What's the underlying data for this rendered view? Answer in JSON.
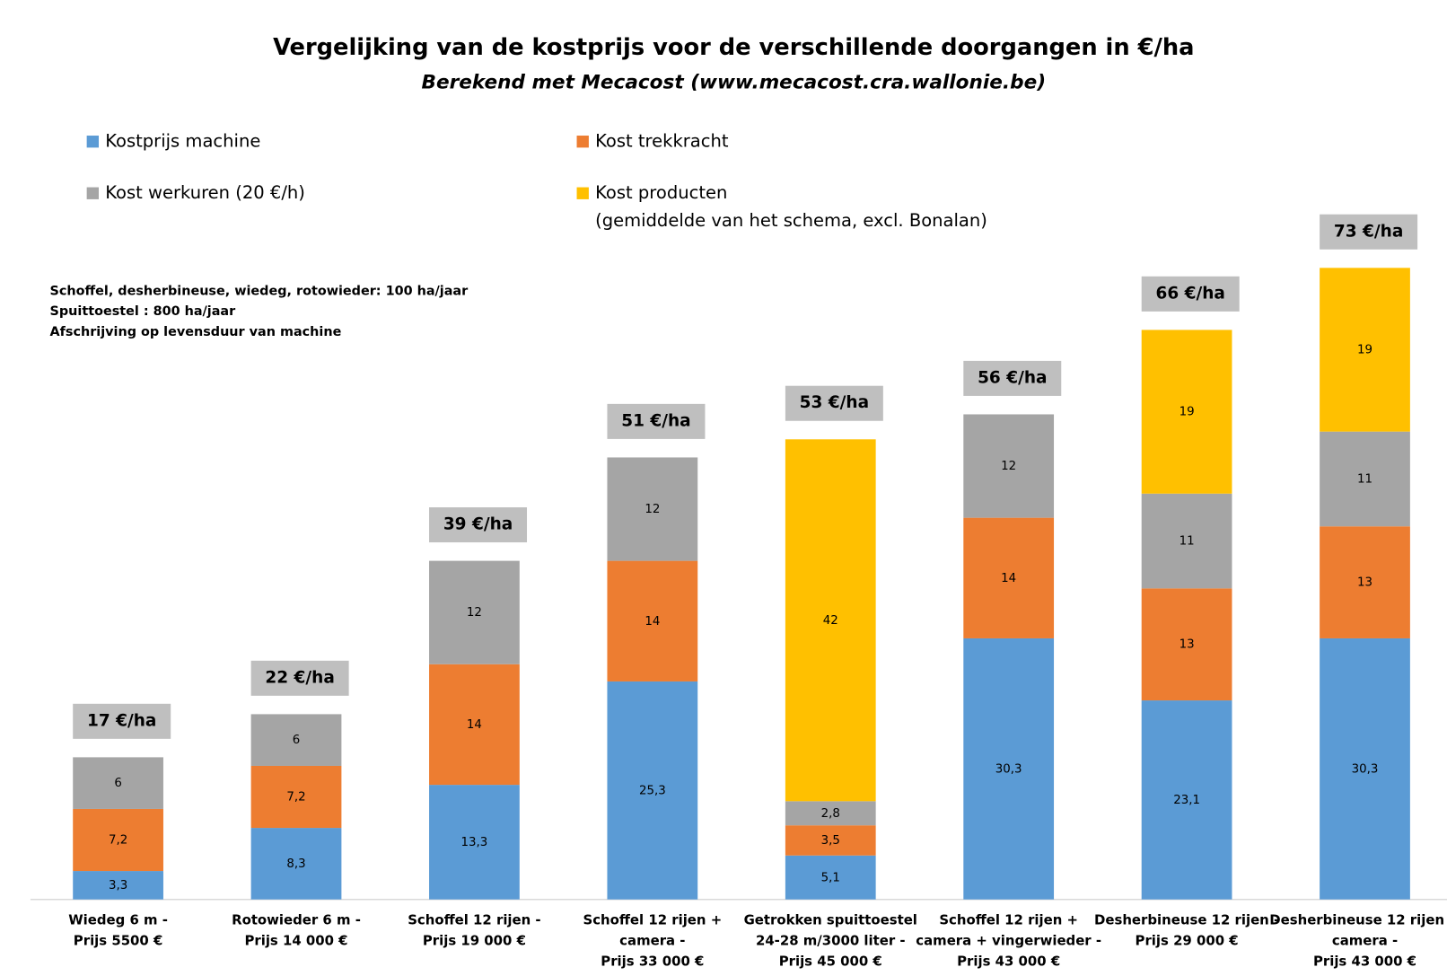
{
  "chart_data": {
    "type": "stacked_bar",
    "title": "Vergelijking van de kostprijs voor de verschillende doorgangen in €/ha",
    "subtitle": "Berekend met Mecacost (www.mecacost.cra.wallonie.be)",
    "annotations": [
      "Schoffel, desherbineuse, wiedeg, rotowieder:  100 ha/jaar",
      "Spuittoestel : 800 ha/jaar",
      "Afschrijving op levensduur van machine"
    ],
    "legend_note": "(gemiddelde van het schema, excl. Bonalan)",
    "categories": [
      [
        "Wiedeg 6 m -",
        "Prijs 5500 €"
      ],
      [
        "Rotowieder 6 m -",
        "Prijs 14 000 €"
      ],
      [
        "Schoffel 12 rijen -",
        "Prijs 19 000 €"
      ],
      [
        "Schoffel 12 rijen +",
        "camera -",
        "Prijs 33 000 €"
      ],
      [
        "Getrokken spuittoestel",
        "24-28 m/3000 liter -",
        "Prijs 45 000 €"
      ],
      [
        "Schoffel 12 rijen +",
        "camera + vingerwieder -",
        "Prijs 43 000  €"
      ],
      [
        "Desherbineuse 12 rijen -",
        "Prijs 29 000 €"
      ],
      [
        "Desherbineuse 12 rijen +",
        "camera -",
        "Prijs 43 000 €"
      ]
    ],
    "series": [
      {
        "name": "Kostprijs machine",
        "color": "#5b9bd5",
        "values": [
          3.3,
          8.3,
          13.3,
          25.3,
          5.1,
          30.3,
          23.1,
          30.3
        ],
        "value_labels": [
          "3,3",
          "8,3",
          "13,3",
          "25,3",
          "5,1",
          "30,3",
          "23,1",
          "30,3"
        ]
      },
      {
        "name": "Kost trekkracht",
        "color": "#ed7d31",
        "values": [
          7.2,
          7.2,
          14,
          14,
          3.5,
          14,
          13,
          13
        ],
        "value_labels": [
          "7,2",
          "7,2",
          "14",
          "14",
          "3,5",
          "14",
          "13",
          "13"
        ]
      },
      {
        "name": "Kost werkuren (20 €/h)",
        "color": "#a5a5a5",
        "values": [
          6,
          6,
          12,
          12,
          2.8,
          12,
          11,
          11
        ],
        "value_labels": [
          "6",
          "6",
          "12",
          "12",
          "2,8",
          "12",
          "11",
          "11"
        ]
      },
      {
        "name": "Kost producten",
        "color": "#ffc000",
        "values": [
          null,
          null,
          null,
          null,
          42,
          null,
          19,
          19
        ],
        "value_labels": [
          null,
          null,
          null,
          null,
          "42",
          null,
          "19",
          "19"
        ]
      }
    ],
    "totals": [
      17,
      22,
      39,
      51,
      53,
      56,
      66,
      73
    ],
    "total_labels": [
      "17 €/ha",
      "22 €/ha",
      "39 €/ha",
      "51 €/ha",
      "53 €/ha",
      "56 €/ha",
      "66 €/ha",
      "73 €/ha"
    ]
  }
}
